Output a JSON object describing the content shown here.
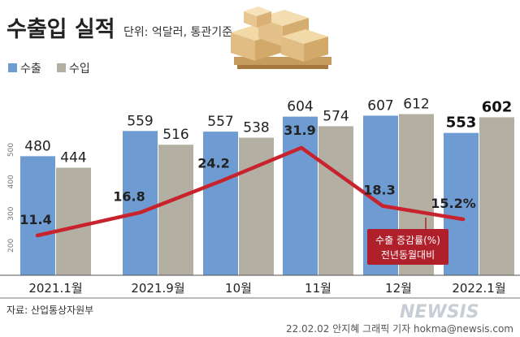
{
  "chart_data": {
    "type": "bar",
    "title": "수출입 실적",
    "unit": "단위: 억달러, 통관기준",
    "categories": [
      "2021.1월",
      "2021.9월",
      "10월",
      "11월",
      "12월",
      "2022.1월"
    ],
    "series": [
      {
        "name": "수출",
        "values": [
          480,
          559,
          557,
          604,
          607,
          553
        ]
      },
      {
        "name": "수입",
        "values": [
          444,
          516,
          538,
          574,
          612,
          602
        ]
      }
    ],
    "line_series": {
      "name": "수출 증감률(%) 전년동월대비",
      "values": [
        11.4,
        16.8,
        24.2,
        31.9,
        18.3,
        15.2
      ],
      "labels": [
        "11.4",
        "16.8",
        "24.2",
        "31.9",
        "18.3",
        "15.2%"
      ],
      "callout_lines": [
        "수출 증감률(%)",
        "전년동월대비"
      ]
    },
    "y_ticks": [
      "200",
      "300",
      "400",
      "500"
    ],
    "source": "자료: 산업통상자원부",
    "credit": "22.02.02 안지혜 그래픽 기자 hokma@newsis.com",
    "watermark": "NEWSIS",
    "colors": {
      "export": "#6e9bd1",
      "import": "#b3afa3",
      "line": "#c8232c",
      "callout": "#b0202a"
    }
  }
}
